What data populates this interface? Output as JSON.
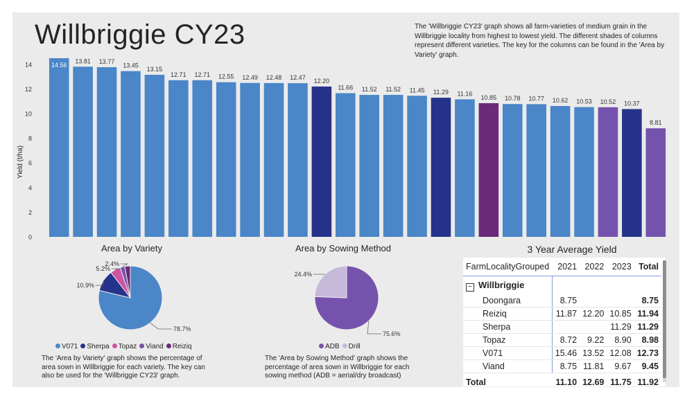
{
  "title": "Willbriggie CY23",
  "description": "The 'Willbriggie CY23' graph shows all farm-varieties of medium grain in the Willbriggie locality from highest to lowest yield. The different shades of columns represent different varieties. The key for the columns can be found in the 'Area by Variety' graph.",
  "colors": {
    "V071": "#4a86c8",
    "Sherpa": "#25338a",
    "Topaz": "#d153a4",
    "Viand": "#7553ac",
    "Reiziq": "#6b2a79",
    "ADB": "#7553ac",
    "Drill": "#c6b9da"
  },
  "chart_data": [
    {
      "type": "bar",
      "title": "Willbriggie CY23",
      "ylabel": "Yield (t/ha)",
      "ylim": [
        0,
        14.5
      ],
      "yticks": [
        0,
        2,
        4,
        6,
        8,
        10,
        12,
        14
      ],
      "values": [
        14.56,
        13.81,
        13.77,
        13.45,
        13.15,
        12.71,
        12.71,
        12.55,
        12.49,
        12.48,
        12.47,
        12.2,
        11.66,
        11.52,
        11.52,
        11.45,
        11.29,
        11.16,
        10.85,
        10.78,
        10.77,
        10.62,
        10.53,
        10.52,
        10.37,
        8.81
      ],
      "labels": [
        "14.56",
        "13.81",
        "13.77",
        "13.45",
        "13.15",
        "12.71",
        "12.71",
        "12.55",
        "12.49",
        "12.48",
        "12.47",
        "12.20",
        "11.66",
        "11.52",
        "11.52",
        "11.45",
        "11.29",
        "11.16",
        "10.85",
        "10.78",
        "10.77",
        "10.62",
        "10.53",
        "10.52",
        "10.37",
        "8.81"
      ],
      "varieties": [
        "V071",
        "V071",
        "V071",
        "V071",
        "V071",
        "V071",
        "V071",
        "V071",
        "V071",
        "V071",
        "V071",
        "Sherpa",
        "V071",
        "V071",
        "V071",
        "V071",
        "Sherpa",
        "V071",
        "Reiziq",
        "V071",
        "V071",
        "V071",
        "V071",
        "Viand",
        "Sherpa",
        "Viand"
      ]
    },
    {
      "type": "pie",
      "title": "Area by Variety",
      "labels": [
        "V071",
        "Sherpa",
        "Topaz",
        "Viand",
        "Reiziq"
      ],
      "values": [
        78.7,
        10.9,
        5.2,
        2.4,
        2.8
      ],
      "slice_labels": [
        "78.7%",
        "10.9%",
        "5.2%",
        "2.4%",
        ""
      ],
      "note": "The 'Area by Variety' graph shows the percentage of area sown in Willbriggie for each variety. The key can also be used for the 'Willbriggie CY23' graph."
    },
    {
      "type": "pie",
      "title": "Area by Sowing Method",
      "labels": [
        "ADB",
        "Drill"
      ],
      "values": [
        75.6,
        24.4
      ],
      "slice_labels": [
        "75.6%",
        "24.4%"
      ],
      "note": "The 'Area by Sowing Method' graph shows the percentage of area sown in Willbriggie for each sowing method (ADB = aerial/dry broadcast)"
    },
    {
      "type": "table",
      "title": "3 Year Average Yield",
      "columns": [
        "FarmLocalityGrouped",
        "2021",
        "2022",
        "2023",
        "Total"
      ],
      "group": "Willbriggie",
      "rows": [
        [
          "Doongara",
          "8.75",
          "",
          "",
          "8.75"
        ],
        [
          "Reiziq",
          "11.87",
          "12.20",
          "10.85",
          "11.94"
        ],
        [
          "Sherpa",
          "",
          "",
          "11.29",
          "11.29"
        ],
        [
          "Topaz",
          "8.72",
          "9.22",
          "8.90",
          "8.98"
        ],
        [
          "V071",
          "15.46",
          "13.52",
          "12.08",
          "12.73"
        ],
        [
          "Viand",
          "8.75",
          "11.81",
          "9.67",
          "9.45"
        ]
      ],
      "total": [
        "Total",
        "11.10",
        "12.69",
        "11.75",
        "11.92"
      ]
    }
  ]
}
